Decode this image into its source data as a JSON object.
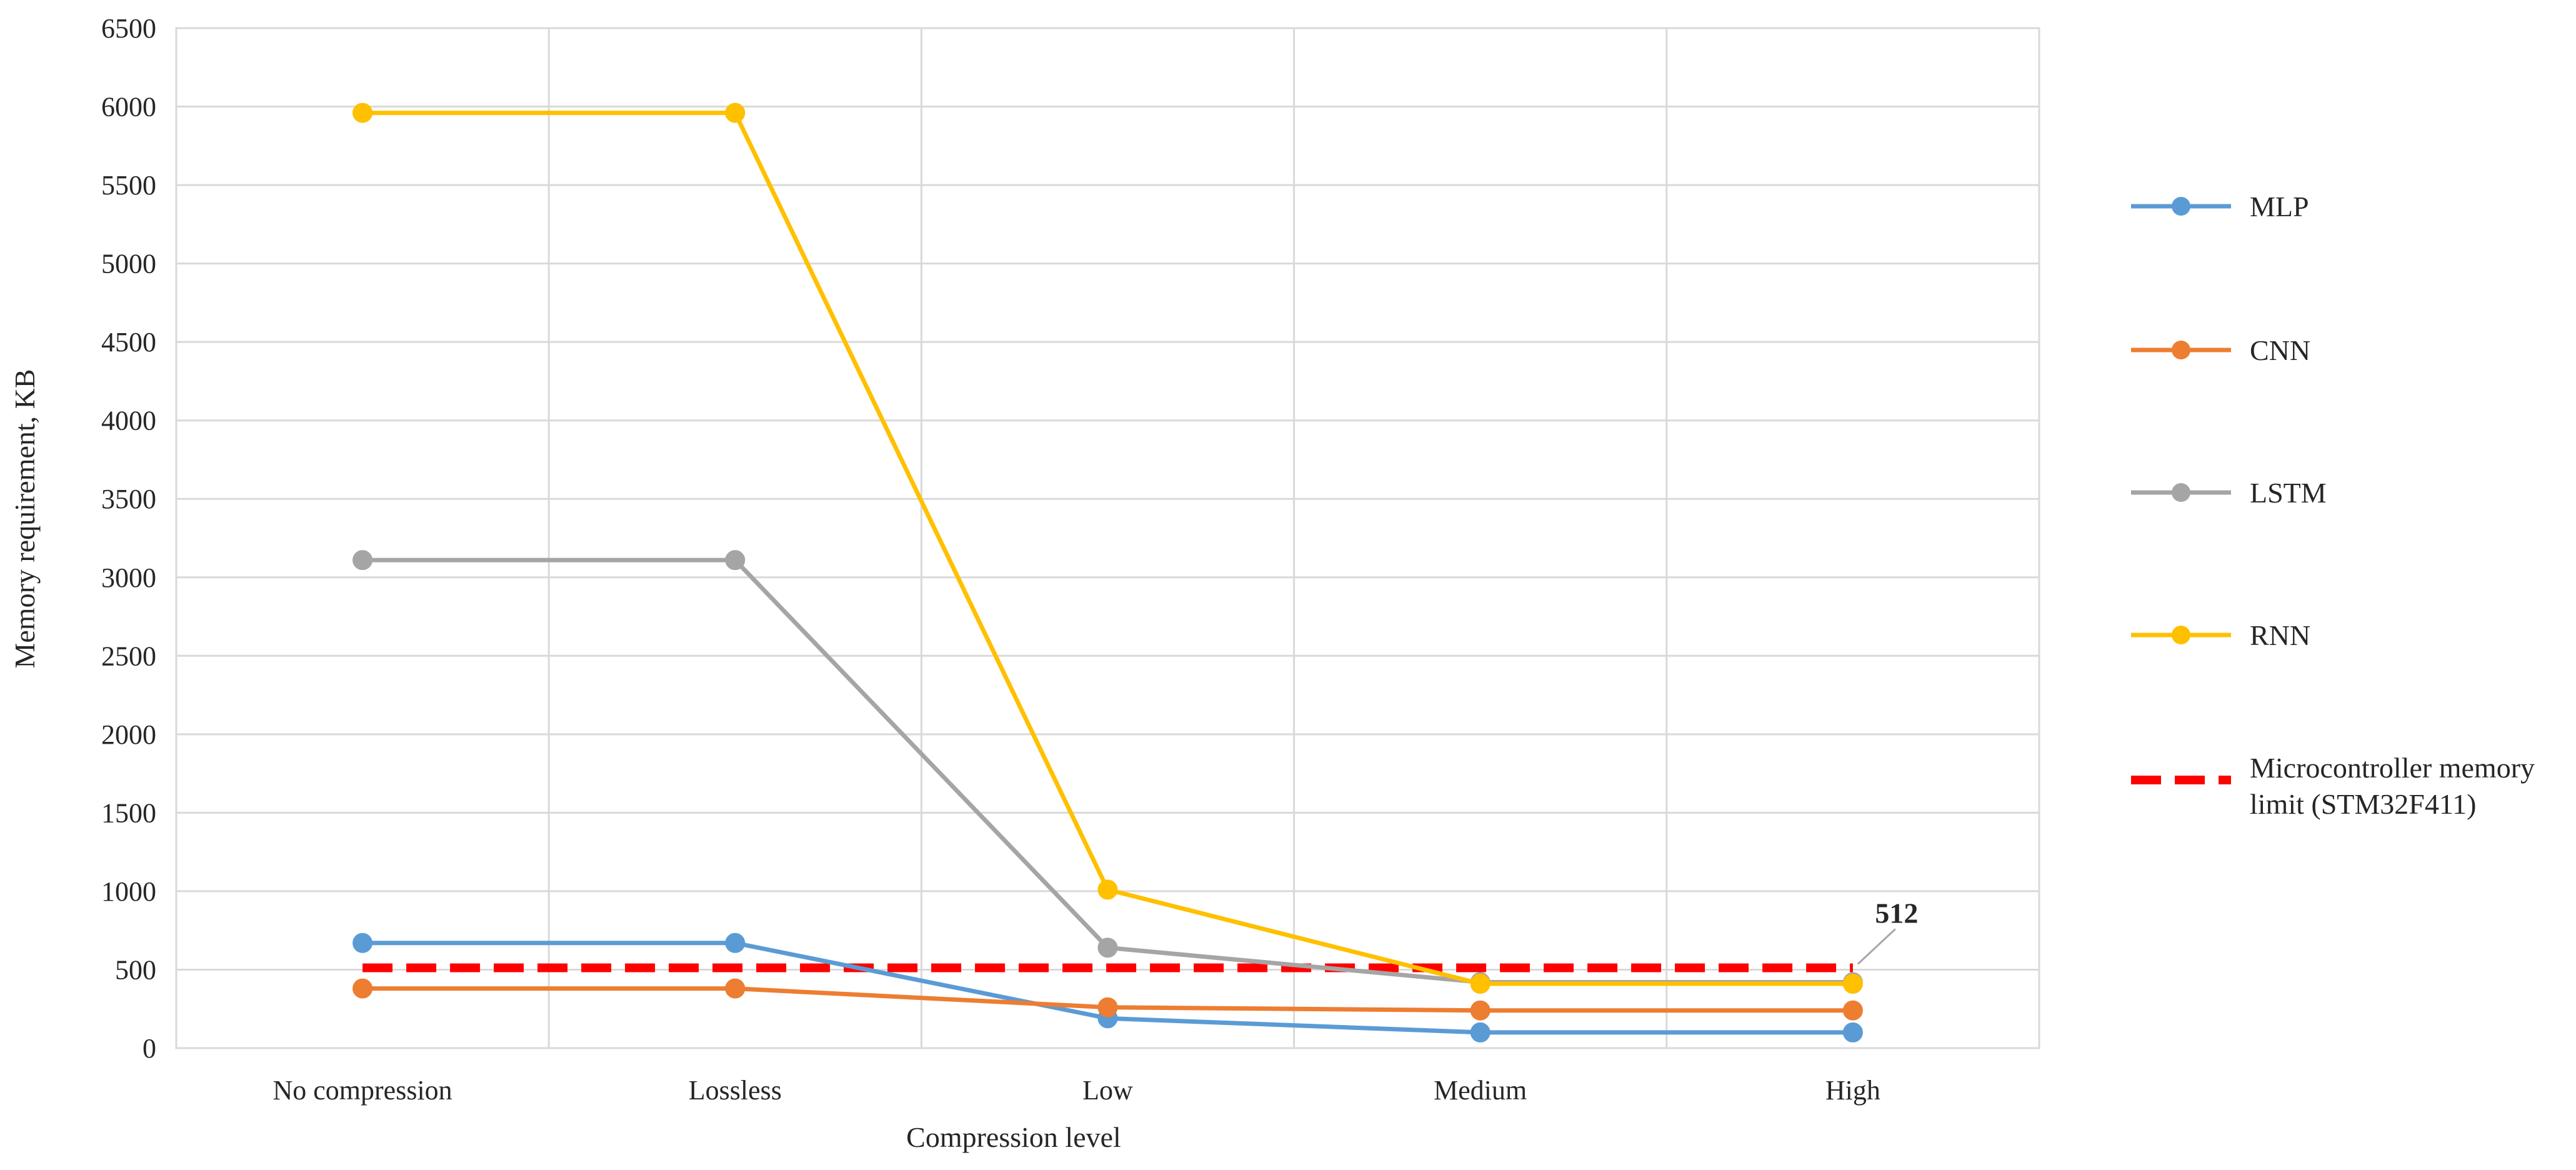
{
  "chart_data": {
    "type": "line",
    "categories": [
      "No compression",
      "Lossless",
      "Low",
      "Medium",
      "High"
    ],
    "xlabel": "Compression level",
    "ylabel": "Memory requirement, KB",
    "ylim": [
      0,
      6500
    ],
    "yticks": [
      0,
      500,
      1000,
      1500,
      2000,
      2500,
      3000,
      3500,
      4000,
      4500,
      5000,
      5500,
      6000,
      6500
    ],
    "grid": true,
    "legend_position": "right",
    "series": [
      {
        "name": "MLP",
        "color": "#5B9BD5",
        "style": "solid",
        "marker": "circle",
        "values": [
          670,
          670,
          190,
          100,
          100
        ]
      },
      {
        "name": "CNN",
        "color": "#ED7D31",
        "style": "solid",
        "marker": "circle",
        "values": [
          380,
          380,
          260,
          240,
          240
        ]
      },
      {
        "name": "LSTM",
        "color": "#A5A5A5",
        "style": "solid",
        "marker": "circle",
        "values": [
          3110,
          3110,
          640,
          420,
          420
        ]
      },
      {
        "name": "RNN",
        "color": "#FFC000",
        "style": "solid",
        "marker": "circle",
        "values": [
          5960,
          5960,
          1010,
          410,
          410
        ]
      },
      {
        "name": "Microcontroller memory limit (STM32F411)",
        "color": "#FF0000",
        "style": "dashed",
        "marker": "none",
        "values": [
          512,
          512,
          512,
          512,
          512
        ]
      }
    ],
    "annotations": [
      {
        "text": "512",
        "category": "High",
        "value": 512
      }
    ]
  }
}
